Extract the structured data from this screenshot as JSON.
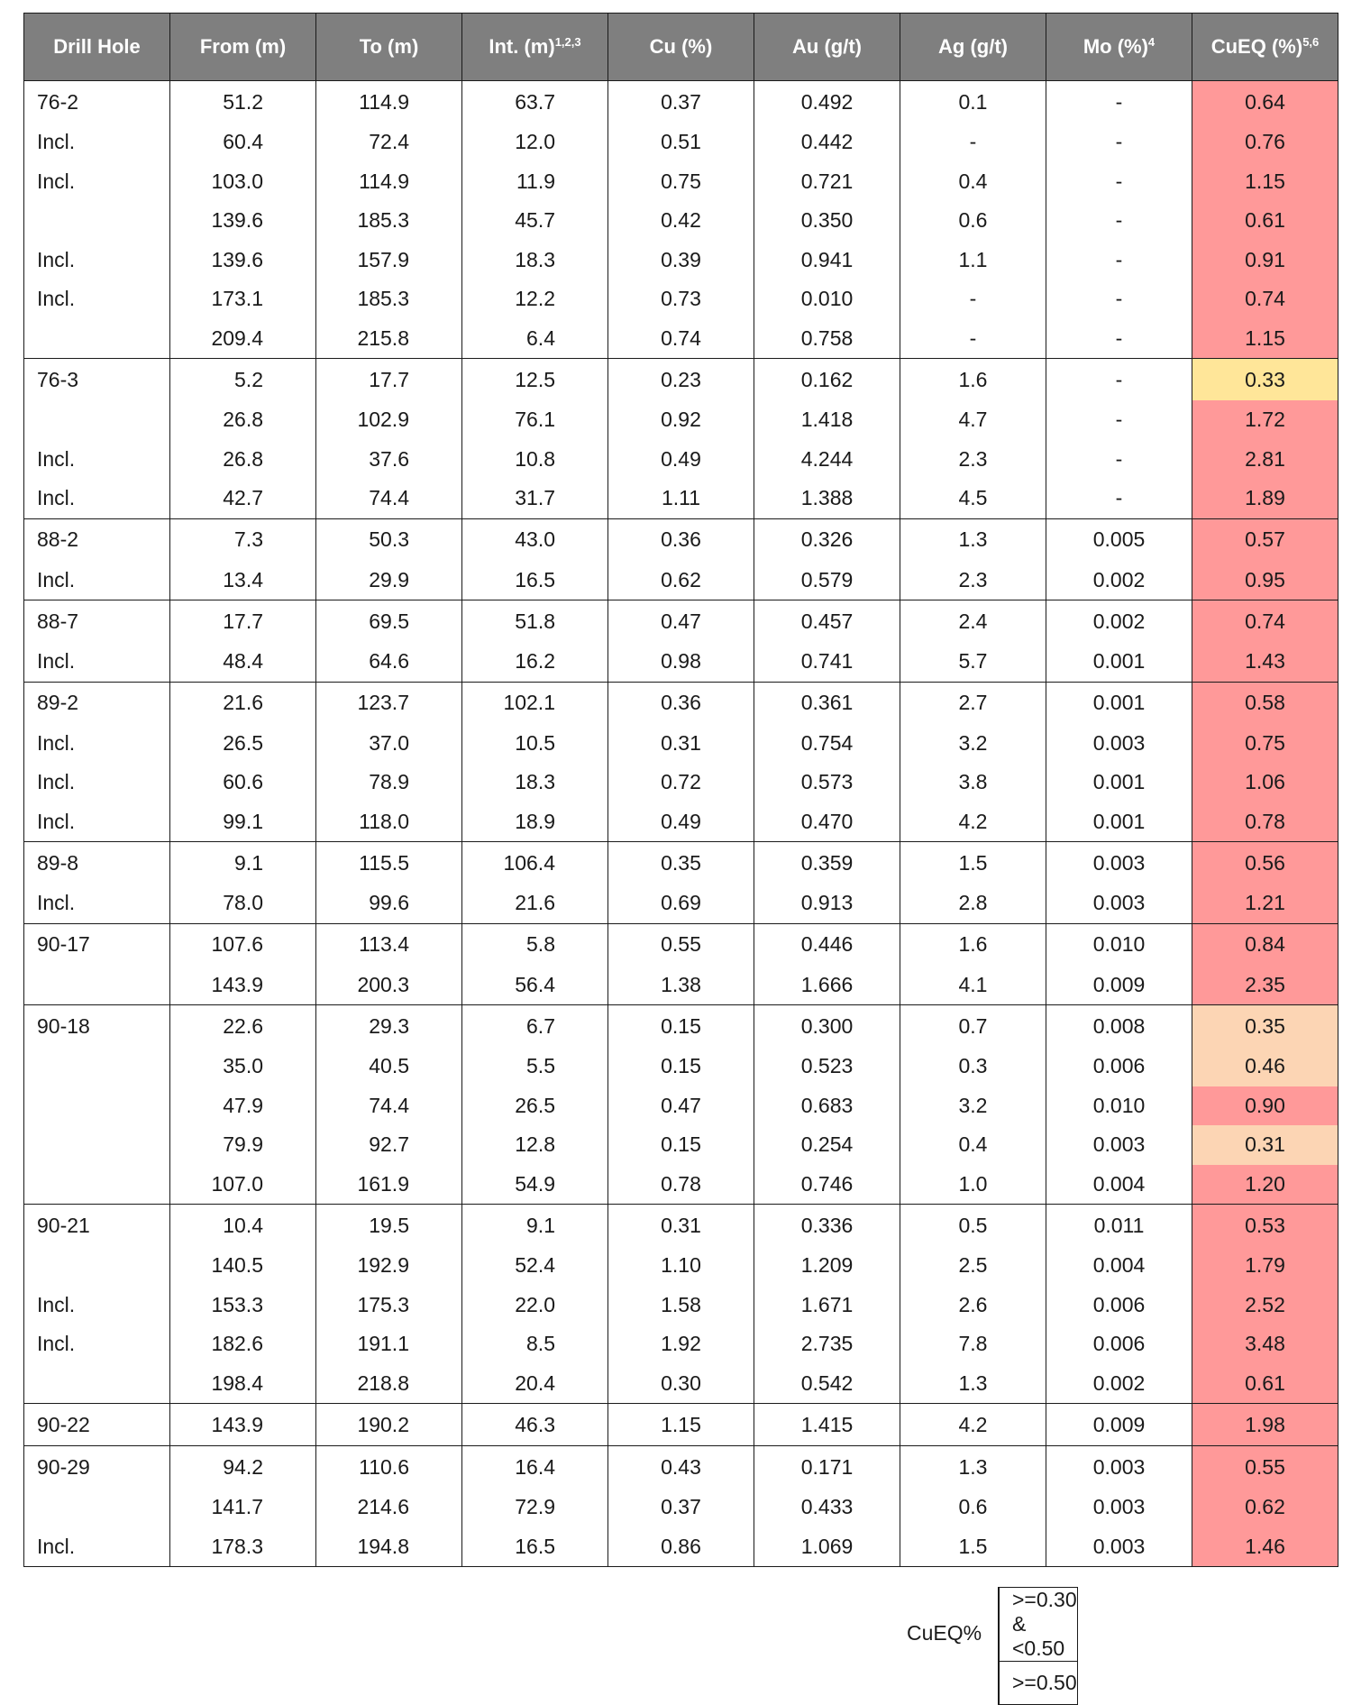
{
  "colors": {
    "header_bg": "#7f7f7f",
    "high": "#ff9999",
    "mid": "#fcd5b4",
    "low_yellow": "#ffe699"
  },
  "headers": {
    "hole": "Drill Hole",
    "from": "From (m)",
    "to": "To (m)",
    "int": "Int. (m)",
    "int_sup": "1,2,3",
    "cu": "Cu (%)",
    "au": "Au (g/t)",
    "ag": "Ag (g/t)",
    "mo": "Mo (%)",
    "mo_sup": "4",
    "cueq": "CuEQ (%)",
    "cueq_sup": "5,6"
  },
  "rows": [
    {
      "hole": "76-2",
      "from": "51.2",
      "to": "114.9",
      "int": "63.7",
      "cu": "0.37",
      "au": "0.492",
      "ag": "0.1",
      "mo": "-",
      "cueq": "0.64",
      "color": "#ff9999",
      "gs": true
    },
    {
      "hole": "Incl.",
      "from": "60.4",
      "to": "72.4",
      "int": "12.0",
      "cu": "0.51",
      "au": "0.442",
      "ag": "-",
      "mo": "-",
      "cueq": "0.76",
      "color": "#ff9999"
    },
    {
      "hole": "Incl.",
      "from": "103.0",
      "to": "114.9",
      "int": "11.9",
      "cu": "0.75",
      "au": "0.721",
      "ag": "0.4",
      "mo": "-",
      "cueq": "1.15",
      "color": "#ff9999"
    },
    {
      "hole": "",
      "from": "139.6",
      "to": "185.3",
      "int": "45.7",
      "cu": "0.42",
      "au": "0.350",
      "ag": "0.6",
      "mo": "-",
      "cueq": "0.61",
      "color": "#ff9999"
    },
    {
      "hole": "Incl.",
      "from": "139.6",
      "to": "157.9",
      "int": "18.3",
      "cu": "0.39",
      "au": "0.941",
      "ag": "1.1",
      "mo": "-",
      "cueq": "0.91",
      "color": "#ff9999"
    },
    {
      "hole": "Incl.",
      "from": "173.1",
      "to": "185.3",
      "int": "12.2",
      "cu": "0.73",
      "au": "0.010",
      "ag": "-",
      "mo": "-",
      "cueq": "0.74",
      "color": "#ff9999"
    },
    {
      "hole": "",
      "from": "209.4",
      "to": "215.8",
      "int": "6.4",
      "cu": "0.74",
      "au": "0.758",
      "ag": "-",
      "mo": "-",
      "cueq": "1.15",
      "color": "#ff9999"
    },
    {
      "hole": "76-3",
      "from": "5.2",
      "to": "17.7",
      "int": "12.5",
      "cu": "0.23",
      "au": "0.162",
      "ag": "1.6",
      "mo": "-",
      "cueq": "0.33",
      "color": "#ffe699",
      "gs": true
    },
    {
      "hole": "",
      "from": "26.8",
      "to": "102.9",
      "int": "76.1",
      "cu": "0.92",
      "au": "1.418",
      "ag": "4.7",
      "mo": "-",
      "cueq": "1.72",
      "color": "#ff9999"
    },
    {
      "hole": "Incl.",
      "from": "26.8",
      "to": "37.6",
      "int": "10.8",
      "cu": "0.49",
      "au": "4.244",
      "ag": "2.3",
      "mo": "-",
      "cueq": "2.81",
      "color": "#ff9999"
    },
    {
      "hole": "Incl.",
      "from": "42.7",
      "to": "74.4",
      "int": "31.7",
      "cu": "1.11",
      "au": "1.388",
      "ag": "4.5",
      "mo": "-",
      "cueq": "1.89",
      "color": "#ff9999"
    },
    {
      "hole": "88-2",
      "from": "7.3",
      "to": "50.3",
      "int": "43.0",
      "cu": "0.36",
      "au": "0.326",
      "ag": "1.3",
      "mo": "0.005",
      "cueq": "0.57",
      "color": "#ff9999",
      "gs": true
    },
    {
      "hole": "Incl.",
      "from": "13.4",
      "to": "29.9",
      "int": "16.5",
      "cu": "0.62",
      "au": "0.579",
      "ag": "2.3",
      "mo": "0.002",
      "cueq": "0.95",
      "color": "#ff9999"
    },
    {
      "hole": "88-7",
      "from": "17.7",
      "to": "69.5",
      "int": "51.8",
      "cu": "0.47",
      "au": "0.457",
      "ag": "2.4",
      "mo": "0.002",
      "cueq": "0.74",
      "color": "#ff9999",
      "gs": true
    },
    {
      "hole": "Incl.",
      "from": "48.4",
      "to": "64.6",
      "int": "16.2",
      "cu": "0.98",
      "au": "0.741",
      "ag": "5.7",
      "mo": "0.001",
      "cueq": "1.43",
      "color": "#ff9999"
    },
    {
      "hole": "89-2",
      "from": "21.6",
      "to": "123.7",
      "int": "102.1",
      "cu": "0.36",
      "au": "0.361",
      "ag": "2.7",
      "mo": "0.001",
      "cueq": "0.58",
      "color": "#ff9999",
      "gs": true
    },
    {
      "hole": "Incl.",
      "from": "26.5",
      "to": "37.0",
      "int": "10.5",
      "cu": "0.31",
      "au": "0.754",
      "ag": "3.2",
      "mo": "0.003",
      "cueq": "0.75",
      "color": "#ff9999"
    },
    {
      "hole": "Incl.",
      "from": "60.6",
      "to": "78.9",
      "int": "18.3",
      "cu": "0.72",
      "au": "0.573",
      "ag": "3.8",
      "mo": "0.001",
      "cueq": "1.06",
      "color": "#ff9999"
    },
    {
      "hole": "Incl.",
      "from": "99.1",
      "to": "118.0",
      "int": "18.9",
      "cu": "0.49",
      "au": "0.470",
      "ag": "4.2",
      "mo": "0.001",
      "cueq": "0.78",
      "color": "#ff9999"
    },
    {
      "hole": "89-8",
      "from": "9.1",
      "to": "115.5",
      "int": "106.4",
      "cu": "0.35",
      "au": "0.359",
      "ag": "1.5",
      "mo": "0.003",
      "cueq": "0.56",
      "color": "#ff9999",
      "gs": true
    },
    {
      "hole": "Incl.",
      "from": "78.0",
      "to": "99.6",
      "int": "21.6",
      "cu": "0.69",
      "au": "0.913",
      "ag": "2.8",
      "mo": "0.003",
      "cueq": "1.21",
      "color": "#ff9999"
    },
    {
      "hole": "90-17",
      "from": "107.6",
      "to": "113.4",
      "int": "5.8",
      "cu": "0.55",
      "au": "0.446",
      "ag": "1.6",
      "mo": "0.010",
      "cueq": "0.84",
      "color": "#ff9999",
      "gs": true
    },
    {
      "hole": "",
      "from": "143.9",
      "to": "200.3",
      "int": "56.4",
      "cu": "1.38",
      "au": "1.666",
      "ag": "4.1",
      "mo": "0.009",
      "cueq": "2.35",
      "color": "#ff9999"
    },
    {
      "hole": "90-18",
      "from": "22.6",
      "to": "29.3",
      "int": "6.7",
      "cu": "0.15",
      "au": "0.300",
      "ag": "0.7",
      "mo": "0.008",
      "cueq": "0.35",
      "color": "#fcd5b4",
      "gs": true
    },
    {
      "hole": "",
      "from": "35.0",
      "to": "40.5",
      "int": "5.5",
      "cu": "0.15",
      "au": "0.523",
      "ag": "0.3",
      "mo": "0.006",
      "cueq": "0.46",
      "color": "#fcd5b4"
    },
    {
      "hole": "",
      "from": "47.9",
      "to": "74.4",
      "int": "26.5",
      "cu": "0.47",
      "au": "0.683",
      "ag": "3.2",
      "mo": "0.010",
      "cueq": "0.90",
      "color": "#ff9999"
    },
    {
      "hole": "",
      "from": "79.9",
      "to": "92.7",
      "int": "12.8",
      "cu": "0.15",
      "au": "0.254",
      "ag": "0.4",
      "mo": "0.003",
      "cueq": "0.31",
      "color": "#fcd5b4"
    },
    {
      "hole": "",
      "from": "107.0",
      "to": "161.9",
      "int": "54.9",
      "cu": "0.78",
      "au": "0.746",
      "ag": "1.0",
      "mo": "0.004",
      "cueq": "1.20",
      "color": "#ff9999"
    },
    {
      "hole": "90-21",
      "from": "10.4",
      "to": "19.5",
      "int": "9.1",
      "cu": "0.31",
      "au": "0.336",
      "ag": "0.5",
      "mo": "0.011",
      "cueq": "0.53",
      "color": "#ff9999",
      "gs": true
    },
    {
      "hole": "",
      "from": "140.5",
      "to": "192.9",
      "int": "52.4",
      "cu": "1.10",
      "au": "1.209",
      "ag": "2.5",
      "mo": "0.004",
      "cueq": "1.79",
      "color": "#ff9999"
    },
    {
      "hole": "Incl.",
      "from": "153.3",
      "to": "175.3",
      "int": "22.0",
      "cu": "1.58",
      "au": "1.671",
      "ag": "2.6",
      "mo": "0.006",
      "cueq": "2.52",
      "color": "#ff9999"
    },
    {
      "hole": "Incl.",
      "from": "182.6",
      "to": "191.1",
      "int": "8.5",
      "cu": "1.92",
      "au": "2.735",
      "ag": "7.8",
      "mo": "0.006",
      "cueq": "3.48",
      "color": "#ff9999"
    },
    {
      "hole": "",
      "from": "198.4",
      "to": "218.8",
      "int": "20.4",
      "cu": "0.30",
      "au": "0.542",
      "ag": "1.3",
      "mo": "0.002",
      "cueq": "0.61",
      "color": "#ff9999"
    },
    {
      "hole": "90-22",
      "from": "143.9",
      "to": "190.2",
      "int": "46.3",
      "cu": "1.15",
      "au": "1.415",
      "ag": "4.2",
      "mo": "0.009",
      "cueq": "1.98",
      "color": "#ff9999",
      "gs": true
    },
    {
      "hole": "90-29",
      "from": "94.2",
      "to": "110.6",
      "int": "16.4",
      "cu": "0.43",
      "au": "0.171",
      "ag": "1.3",
      "mo": "0.003",
      "cueq": "0.55",
      "color": "#ff9999",
      "gs": true
    },
    {
      "hole": "",
      "from": "141.7",
      "to": "214.6",
      "int": "72.9",
      "cu": "0.37",
      "au": "0.433",
      "ag": "0.6",
      "mo": "0.003",
      "cueq": "0.62",
      "color": "#ff9999"
    },
    {
      "hole": "Incl.",
      "from": "178.3",
      "to": "194.8",
      "int": "16.5",
      "cu": "0.86",
      "au": "1.069",
      "ag": "1.5",
      "mo": "0.003",
      "cueq": "1.46",
      "color": "#ff9999"
    }
  ],
  "legend": {
    "label": "CuEQ%",
    "items": [
      {
        "color": "#fcd5b4",
        "text": ">=0.30 & <0.50"
      },
      {
        "color": "#ff9999",
        "text": ">=0.50"
      }
    ]
  }
}
